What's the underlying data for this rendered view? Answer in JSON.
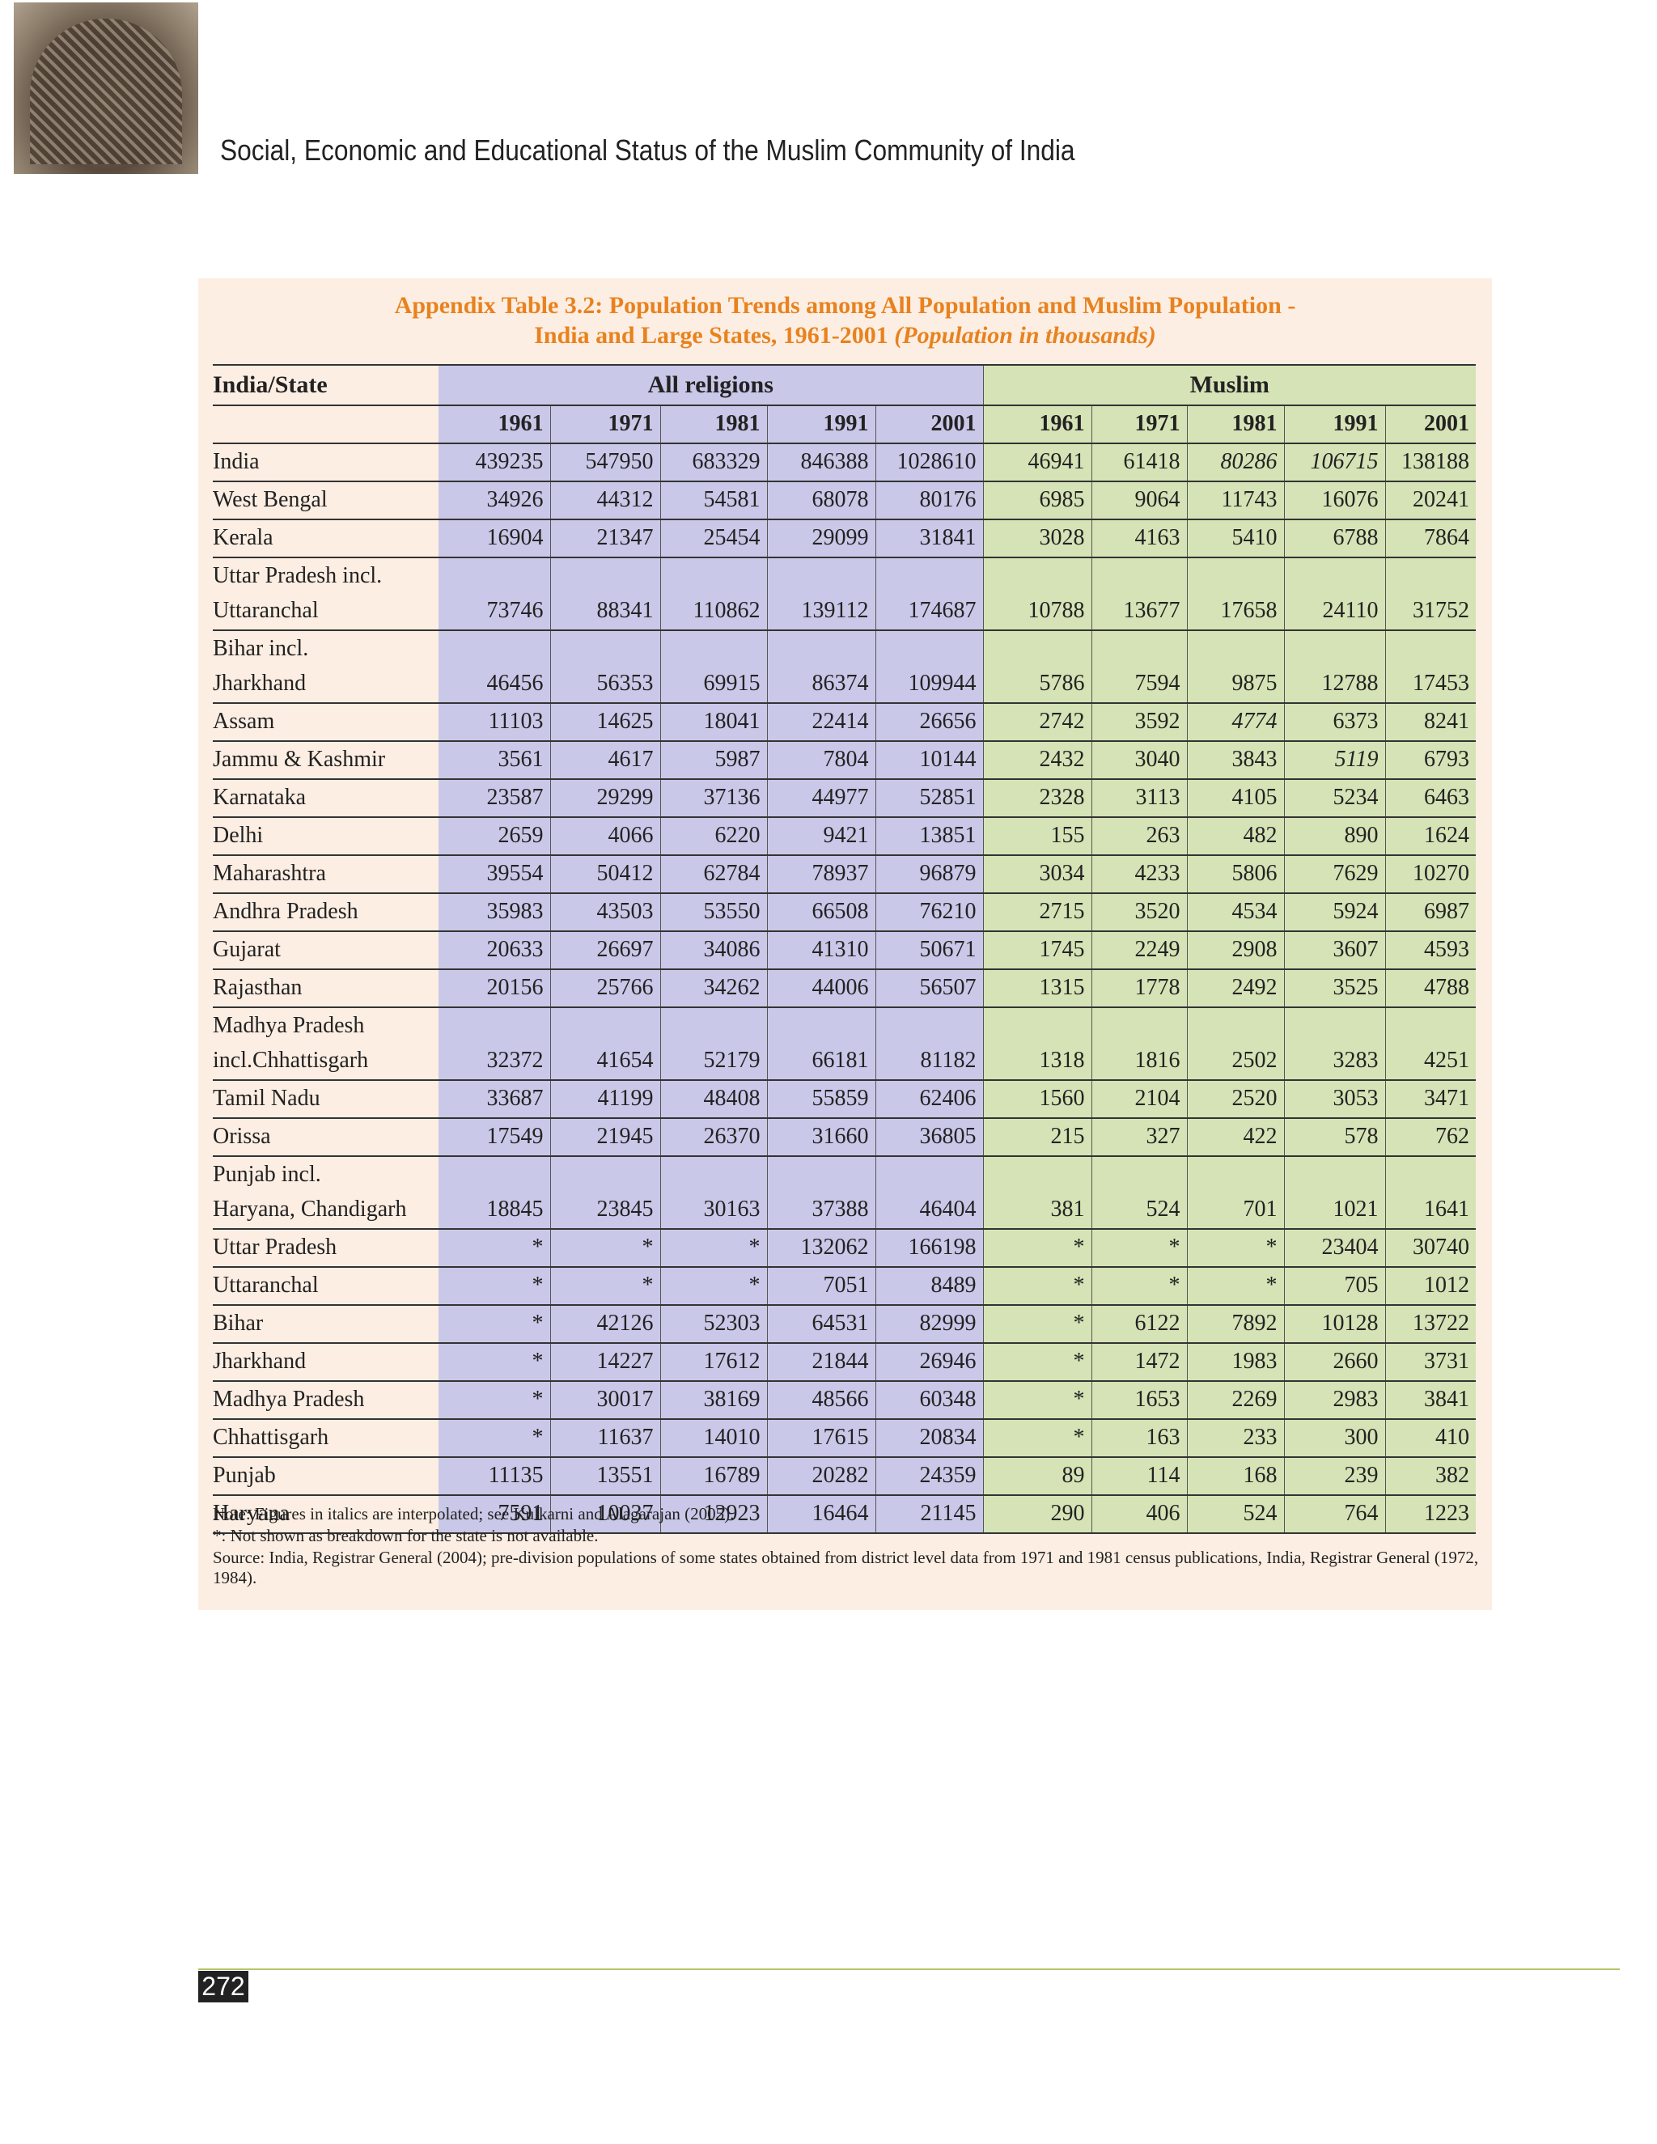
{
  "header": {
    "title": "Social, Economic and Educational Status of the Muslim Community of India"
  },
  "table": {
    "title_line1": "Appendix Table 3.2: Population Trends among All Population and Muslim Population -",
    "title_line2": "India and Large States, 1961-2001",
    "title_italic": "(Population in thousands)",
    "state_header": "India/State",
    "group_headers": [
      "All religions",
      "Muslim"
    ],
    "years": [
      "1961",
      "1971",
      "1981",
      "1991",
      "2001",
      "1961",
      "1971",
      "1981",
      "1991",
      "2001"
    ],
    "italic_cells": [
      [
        0,
        7
      ],
      [
        0,
        8
      ],
      [
        5,
        7
      ],
      [
        6,
        8
      ]
    ],
    "rows": [
      {
        "state": [
          "India"
        ],
        "values": [
          439235,
          547950,
          683329,
          846388,
          1028610,
          46941,
          61418,
          80286,
          106715,
          138188
        ]
      },
      {
        "state": [
          "West Bengal"
        ],
        "values": [
          34926,
          44312,
          54581,
          68078,
          80176,
          6985,
          9064,
          11743,
          16076,
          20241
        ]
      },
      {
        "state": [
          "Kerala"
        ],
        "values": [
          16904,
          21347,
          25454,
          29099,
          31841,
          3028,
          4163,
          5410,
          6788,
          7864
        ]
      },
      {
        "state": [
          "Uttar Pradesh incl.",
          "Uttaranchal"
        ],
        "values": [
          73746,
          88341,
          110862,
          139112,
          174687,
          10788,
          13677,
          17658,
          24110,
          31752
        ]
      },
      {
        "state": [
          "Bihar incl.",
          "Jharkhand"
        ],
        "values": [
          46456,
          56353,
          69915,
          86374,
          109944,
          5786,
          7594,
          9875,
          12788,
          17453
        ]
      },
      {
        "state": [
          "Assam"
        ],
        "values": [
          11103,
          14625,
          18041,
          22414,
          26656,
          2742,
          3592,
          4774,
          6373,
          8241
        ]
      },
      {
        "state": [
          "Jammu & Kashmir"
        ],
        "values": [
          3561,
          4617,
          5987,
          7804,
          10144,
          2432,
          3040,
          3843,
          5119,
          6793
        ]
      },
      {
        "state": [
          "Karnataka"
        ],
        "values": [
          23587,
          29299,
          37136,
          44977,
          52851,
          2328,
          3113,
          4105,
          5234,
          6463
        ]
      },
      {
        "state": [
          "Delhi"
        ],
        "values": [
          2659,
          4066,
          6220,
          9421,
          13851,
          155,
          263,
          482,
          890,
          1624
        ]
      },
      {
        "state": [
          "Maharashtra"
        ],
        "values": [
          39554,
          50412,
          62784,
          78937,
          96879,
          3034,
          4233,
          5806,
          7629,
          10270
        ]
      },
      {
        "state": [
          "Andhra Pradesh"
        ],
        "values": [
          35983,
          43503,
          53550,
          66508,
          76210,
          2715,
          3520,
          4534,
          5924,
          6987
        ]
      },
      {
        "state": [
          "Gujarat"
        ],
        "values": [
          20633,
          26697,
          34086,
          41310,
          50671,
          1745,
          2249,
          2908,
          3607,
          4593
        ]
      },
      {
        "state": [
          "Rajasthan"
        ],
        "values": [
          20156,
          25766,
          34262,
          44006,
          56507,
          1315,
          1778,
          2492,
          3525,
          4788
        ]
      },
      {
        "state": [
          "Madhya Pradesh",
          "incl.Chhattisgarh"
        ],
        "values": [
          32372,
          41654,
          52179,
          66181,
          81182,
          1318,
          1816,
          2502,
          3283,
          4251
        ]
      },
      {
        "state": [
          "Tamil Nadu"
        ],
        "values": [
          33687,
          41199,
          48408,
          55859,
          62406,
          1560,
          2104,
          2520,
          3053,
          3471
        ]
      },
      {
        "state": [
          "Orissa"
        ],
        "values": [
          17549,
          21945,
          26370,
          31660,
          36805,
          215,
          327,
          422,
          578,
          762
        ]
      },
      {
        "state": [
          "Punjab incl.",
          "Haryana, Chandigarh"
        ],
        "values": [
          18845,
          23845,
          30163,
          37388,
          46404,
          381,
          524,
          701,
          1021,
          1641
        ]
      },
      {
        "state": [
          "Uttar Pradesh"
        ],
        "values": [
          "*",
          "*",
          "*",
          132062,
          166198,
          "*",
          "*",
          "*",
          23404,
          30740
        ]
      },
      {
        "state": [
          "Uttaranchal"
        ],
        "values": [
          "*",
          "*",
          "*",
          7051,
          8489,
          "*",
          "*",
          "*",
          705,
          1012
        ]
      },
      {
        "state": [
          "Bihar"
        ],
        "values": [
          "*",
          42126,
          52303,
          64531,
          82999,
          "*",
          6122,
          7892,
          10128,
          13722
        ]
      },
      {
        "state": [
          "Jharkhand"
        ],
        "values": [
          "*",
          14227,
          17612,
          21844,
          26946,
          "*",
          1472,
          1983,
          2660,
          3731
        ]
      },
      {
        "state": [
          "Madhya Pradesh"
        ],
        "values": [
          "*",
          30017,
          38169,
          48566,
          60348,
          "*",
          1653,
          2269,
          2983,
          3841
        ]
      },
      {
        "state": [
          "Chhattisgarh"
        ],
        "values": [
          "*",
          11637,
          14010,
          17615,
          20834,
          "*",
          163,
          233,
          300,
          410
        ]
      },
      {
        "state": [
          "Punjab"
        ],
        "values": [
          11135,
          13551,
          16789,
          20282,
          24359,
          89,
          114,
          168,
          239,
          382
        ]
      },
      {
        "state": [
          "Haryana"
        ],
        "values": [
          7591,
          10037,
          12923,
          16464,
          21145,
          290,
          406,
          524,
          764,
          1223
        ]
      }
    ],
    "notes": [
      "Note: Figures in italics are interpolated; see Kulkarni and Alagarajan (2005).",
      "*: Not shown as breakdown for the state is not available.",
      "Source: India, Registrar General (2004); pre-division populations of some states obtained from district level data from 1971 and 1981 census publications, India, Registrar General (1972, 1984)."
    ]
  },
  "footer": {
    "page_number": "272"
  }
}
